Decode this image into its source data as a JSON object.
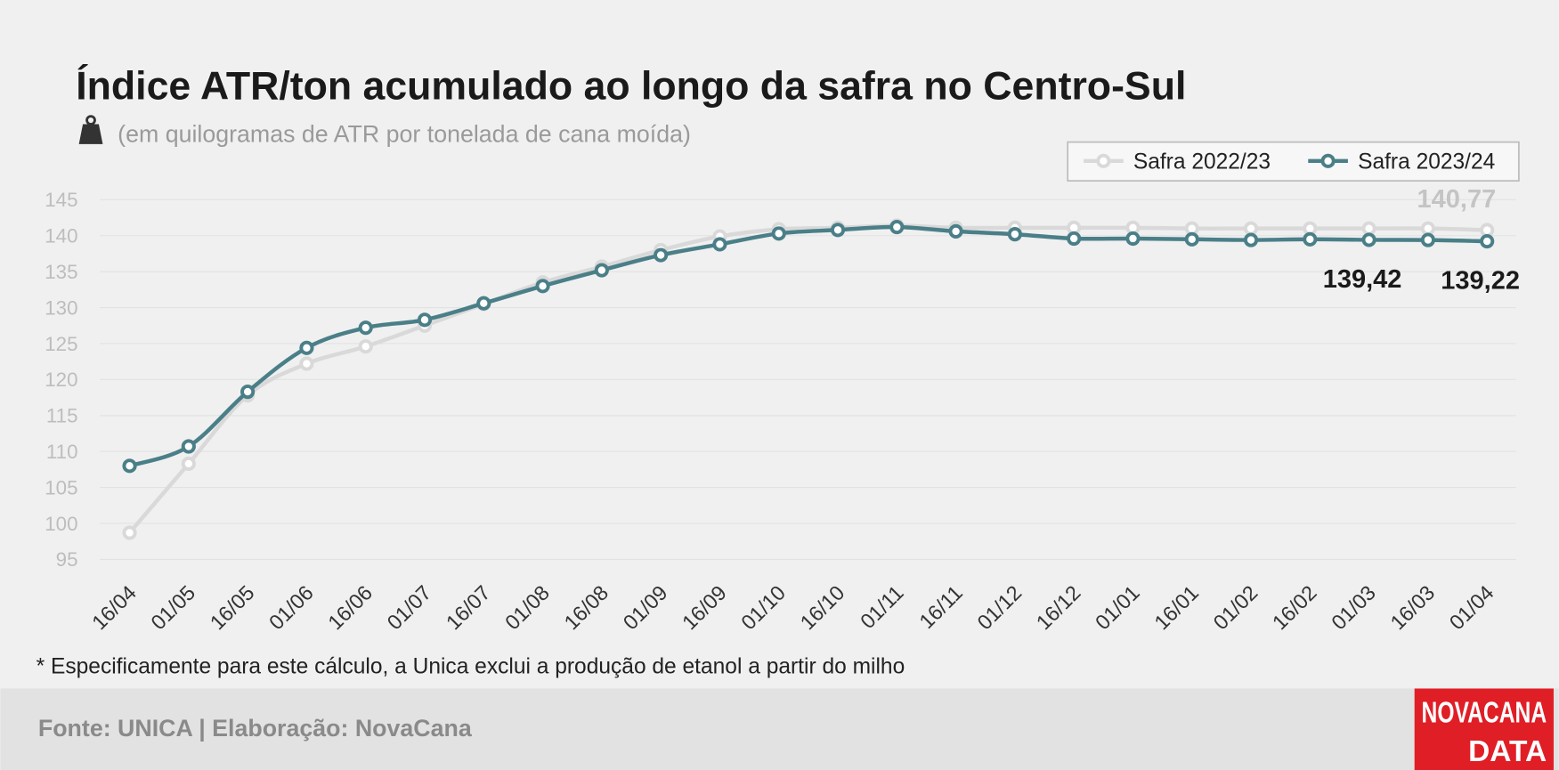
{
  "chart_data": {
    "type": "line",
    "title": "Índice ATR/ton acumulado ao longo da safra no Centro-Sul",
    "subtitle": "(em quilogramas de ATR por tonelada de cana moída)",
    "note": "* Especificamente para este cálculo, a Unica exclui a produção de etanol a partir do milho",
    "source": "Fonte: UNICA | Elaboração: NovaCana",
    "logo": [
      "NOVACANA",
      "DATA"
    ],
    "categories": [
      "16/04",
      "01/05",
      "16/05",
      "01/06",
      "16/06",
      "01/07",
      "16/07",
      "01/08",
      "16/08",
      "01/09",
      "16/09",
      "01/10",
      "16/10",
      "01/11",
      "16/11",
      "01/12",
      "16/12",
      "01/01",
      "16/01",
      "01/02",
      "16/02",
      "01/03",
      "16/03",
      "01/04"
    ],
    "series": [
      {
        "name": "Safra 2022/23",
        "color": "#d9d9d9",
        "values": [
          98.7,
          108.3,
          117.8,
          122.2,
          124.6,
          127.5,
          130.5,
          133.5,
          135.7,
          138,
          139.9,
          140.9,
          141.1,
          141.4,
          141.1,
          141.1,
          141.1,
          141.1,
          141,
          141,
          141,
          141,
          141,
          140.77
        ],
        "value_labels": [
          null,
          null,
          null,
          null,
          null,
          null,
          null,
          null,
          null,
          null,
          null,
          null,
          null,
          null,
          null,
          null,
          null,
          null,
          null,
          null,
          null,
          null,
          null,
          "140,77"
        ]
      },
      {
        "name": "Safra 2023/24",
        "color": "#4a7f88",
        "values": [
          108,
          110.7,
          118.3,
          124.4,
          127.2,
          128.3,
          130.6,
          133,
          135.2,
          137.3,
          138.8,
          140.3,
          140.8,
          141.2,
          140.6,
          140.2,
          139.6,
          139.6,
          139.5,
          139.4,
          139.5,
          139.42,
          139.4,
          139.22
        ],
        "value_labels": [
          null,
          null,
          null,
          null,
          null,
          null,
          null,
          null,
          null,
          null,
          null,
          null,
          null,
          null,
          null,
          null,
          null,
          null,
          null,
          null,
          null,
          "139,42",
          null,
          "139,22"
        ]
      }
    ],
    "ylim": [
      95,
      145
    ],
    "yticks": [
      95,
      100,
      105,
      110,
      115,
      120,
      125,
      130,
      135,
      140,
      145
    ],
    "grid": true
  }
}
